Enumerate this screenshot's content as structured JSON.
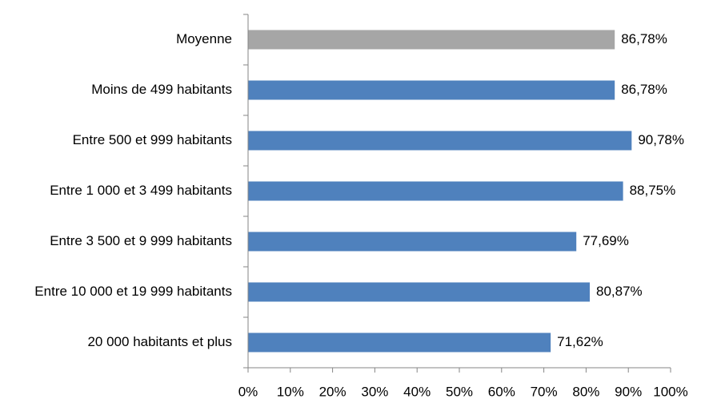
{
  "chart_data": {
    "type": "bar",
    "orientation": "horizontal",
    "categories": [
      "Moyenne",
      "Moins de 499 habitants",
      "Entre 500 et 999 habitants",
      "Entre 1 000 et 3 499 habitants",
      "Entre 3 500 et 9 999 habitants",
      "Entre 10 000 et 19 999 habitants",
      "20 000 habitants et plus"
    ],
    "values": [
      86.78,
      86.78,
      90.78,
      88.75,
      77.69,
      80.87,
      71.62
    ],
    "value_labels": [
      "86,78%",
      "86,78%",
      "90,78%",
      "88,75%",
      "77,69%",
      "80,87%",
      "71,62%"
    ],
    "bar_colors": [
      "#a6a6a6",
      "#4f81bd",
      "#4f81bd",
      "#4f81bd",
      "#4f81bd",
      "#4f81bd",
      "#4f81bd"
    ],
    "xlim": [
      0,
      100
    ],
    "xticks": [
      0,
      10,
      20,
      30,
      40,
      50,
      60,
      70,
      80,
      90,
      100
    ],
    "xtick_labels": [
      "0%",
      "10%",
      "20%",
      "30%",
      "40%",
      "50%",
      "60%",
      "70%",
      "80%",
      "90%",
      "100%"
    ],
    "title": "",
    "xlabel": "",
    "ylabel": "",
    "grid": false,
    "legend": false
  }
}
